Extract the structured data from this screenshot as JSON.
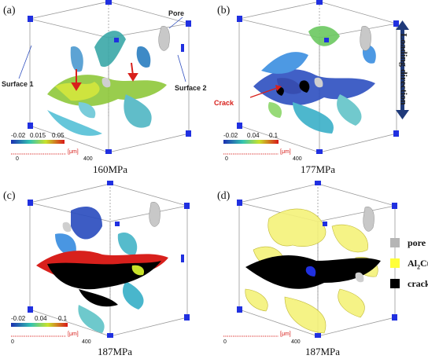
{
  "panels": [
    {
      "label": "(a)",
      "stress": "160MPa",
      "scale_ticks": [
        "-0.02",
        "0.015",
        "0.05"
      ]
    },
    {
      "label": "(b)",
      "stress": "177MPa",
      "scale_ticks": [
        "-0.02",
        "0.04",
        "0.1"
      ]
    },
    {
      "label": "(c)",
      "stress": "187MPa",
      "scale_ticks": [
        "-0.02",
        "0.04",
        "0.1"
      ]
    },
    {
      "label": "(d)",
      "stress": "187MPa"
    }
  ],
  "annotations": {
    "pore": "Pore",
    "surface1": "Surface 1",
    "surface2": "Surface 2",
    "crack": "Crack"
  },
  "loading_direction": "Loading direction",
  "scale_bar": {
    "unit": "[μm]",
    "start": "0",
    "end": "400"
  },
  "legend": [
    {
      "label": "pore",
      "color": "#b5b5b5"
    },
    {
      "label": "Al",
      "sub": "2",
      "suffix": "Cu",
      "color": "#ffff3a"
    },
    {
      "label": "crack",
      "color": "#000000"
    }
  ],
  "colors": {
    "strain_low": "#1a2fb0",
    "strain_mid": "#33c4b0",
    "strain_high": "#d81818",
    "crack_red": "#d8201c",
    "marker": "#2030e0"
  }
}
